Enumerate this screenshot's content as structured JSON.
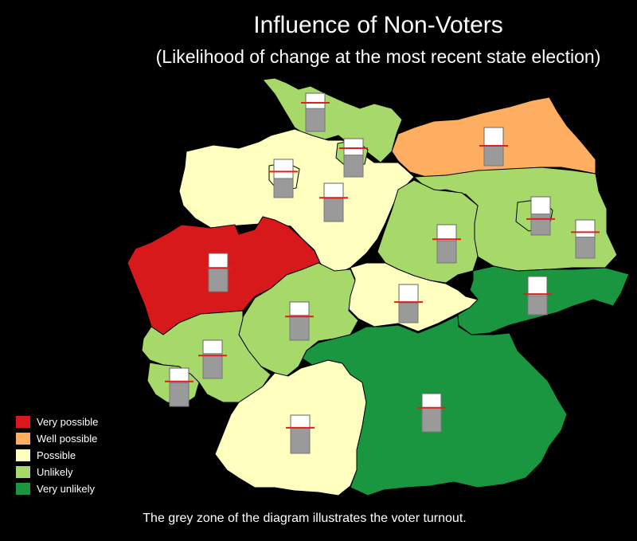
{
  "title": "Influence of Non-Voters",
  "subtitle": "(Likelihood of change at the most recent state election)",
  "footnote": "The grey zone of the diagram illustrates the voter turnout.",
  "colors": {
    "very_possible": "#d7191c",
    "well_possible": "#fdae61",
    "possible": "#ffffc0",
    "unlikely": "#a6d96a",
    "very_unlikely": "#1a9641",
    "turnout_grey": "#9a9a9a",
    "threshold_line": "#e02020"
  },
  "legend": [
    {
      "label": "Very possible",
      "color": "#d7191c"
    },
    {
      "label": "Well possible",
      "color": "#fdae61"
    },
    {
      "label": "Possible",
      "color": "#ffffc0"
    },
    {
      "label": "Unlikely",
      "color": "#a6d96a"
    },
    {
      "label": "Very unlikely",
      "color": "#1a9641"
    }
  ],
  "states": [
    {
      "key": "schleswig-holstein",
      "category": "unlikely",
      "turnout": 0.6,
      "threshold": 0.75
    },
    {
      "key": "hamburg",
      "category": "unlikely",
      "turnout": 0.57,
      "threshold": 0.75
    },
    {
      "key": "bremen",
      "category": "possible",
      "turnout": 0.5,
      "threshold": 0.68
    },
    {
      "key": "mecklenburg-vorpommern",
      "category": "well_possible",
      "turnout": 0.52,
      "threshold": 0.52
    },
    {
      "key": "niedersachsen",
      "category": "possible",
      "turnout": 0.6,
      "threshold": 0.62
    },
    {
      "key": "brandenburg",
      "category": "unlikely",
      "turnout": 0.55,
      "threshold": 0.68
    },
    {
      "key": "berlin",
      "category": "unlikely",
      "turnout": 0.55,
      "threshold": 0.42
    },
    {
      "key": "sachsen-anhalt",
      "category": "unlikely",
      "turnout": 0.58,
      "threshold": 0.62
    },
    {
      "key": "nordrhein-westfalen",
      "category": "very_possible",
      "turnout": 0.6,
      "threshold": 0.62
    },
    {
      "key": "thueringen",
      "category": "possible",
      "turnout": 0.52,
      "threshold": 0.54
    },
    {
      "key": "sachsen",
      "category": "very_unlikely",
      "turnout": 0.5,
      "threshold": 0.54
    },
    {
      "key": "hessen",
      "category": "unlikely",
      "turnout": 0.65,
      "threshold": 0.62
    },
    {
      "key": "rheinland-pfalz",
      "category": "unlikely",
      "turnout": 0.65,
      "threshold": 0.6
    },
    {
      "key": "saarland",
      "category": "unlikely",
      "turnout": 0.62,
      "threshold": 0.65
    },
    {
      "key": "baden-wuerttemberg",
      "category": "possible",
      "turnout": 0.67,
      "threshold": 0.67
    },
    {
      "key": "bayern",
      "category": "very_unlikely",
      "turnout": 0.63,
      "threshold": 0.63
    }
  ]
}
